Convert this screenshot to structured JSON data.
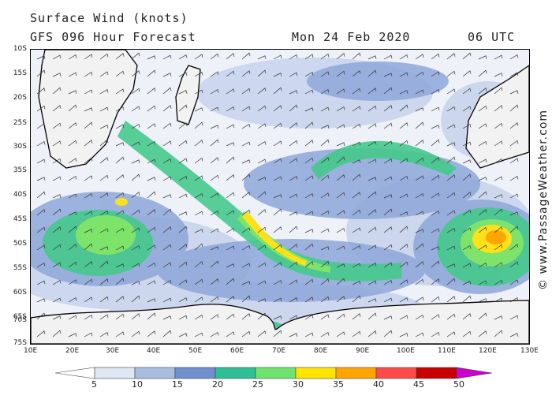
{
  "header": {
    "title": "Surface Wind (knots)",
    "model": "GFS 096 Hour Forecast",
    "date": "Mon 24 Feb 2020",
    "time": "06 UTC"
  },
  "credit": "© www.PassageWeather.com",
  "latitude_labels": [
    "10S",
    "15S",
    "20S",
    "25S",
    "30S",
    "35S",
    "40S",
    "45S",
    "50S",
    "55S",
    "60S",
    "65S",
    "70S",
    "75S"
  ],
  "longitude_labels": [
    "10E",
    "20E",
    "30E",
    "40E",
    "50E",
    "60E",
    "70E",
    "80E",
    "90E",
    "100E",
    "110E",
    "120E",
    "130E"
  ],
  "legend": {
    "labels": [
      "5",
      "10",
      "15",
      "20",
      "25",
      "30",
      "35",
      "40",
      "45",
      "50"
    ],
    "colors": [
      "#ffffff",
      "#dfe6f4",
      "#a9bde0",
      "#6f8fcf",
      "#2fbf96",
      "#6fe36f",
      "#ffe500",
      "#ffa500",
      "#ff4a4a",
      "#c80000",
      "#cc00cc"
    ]
  }
}
